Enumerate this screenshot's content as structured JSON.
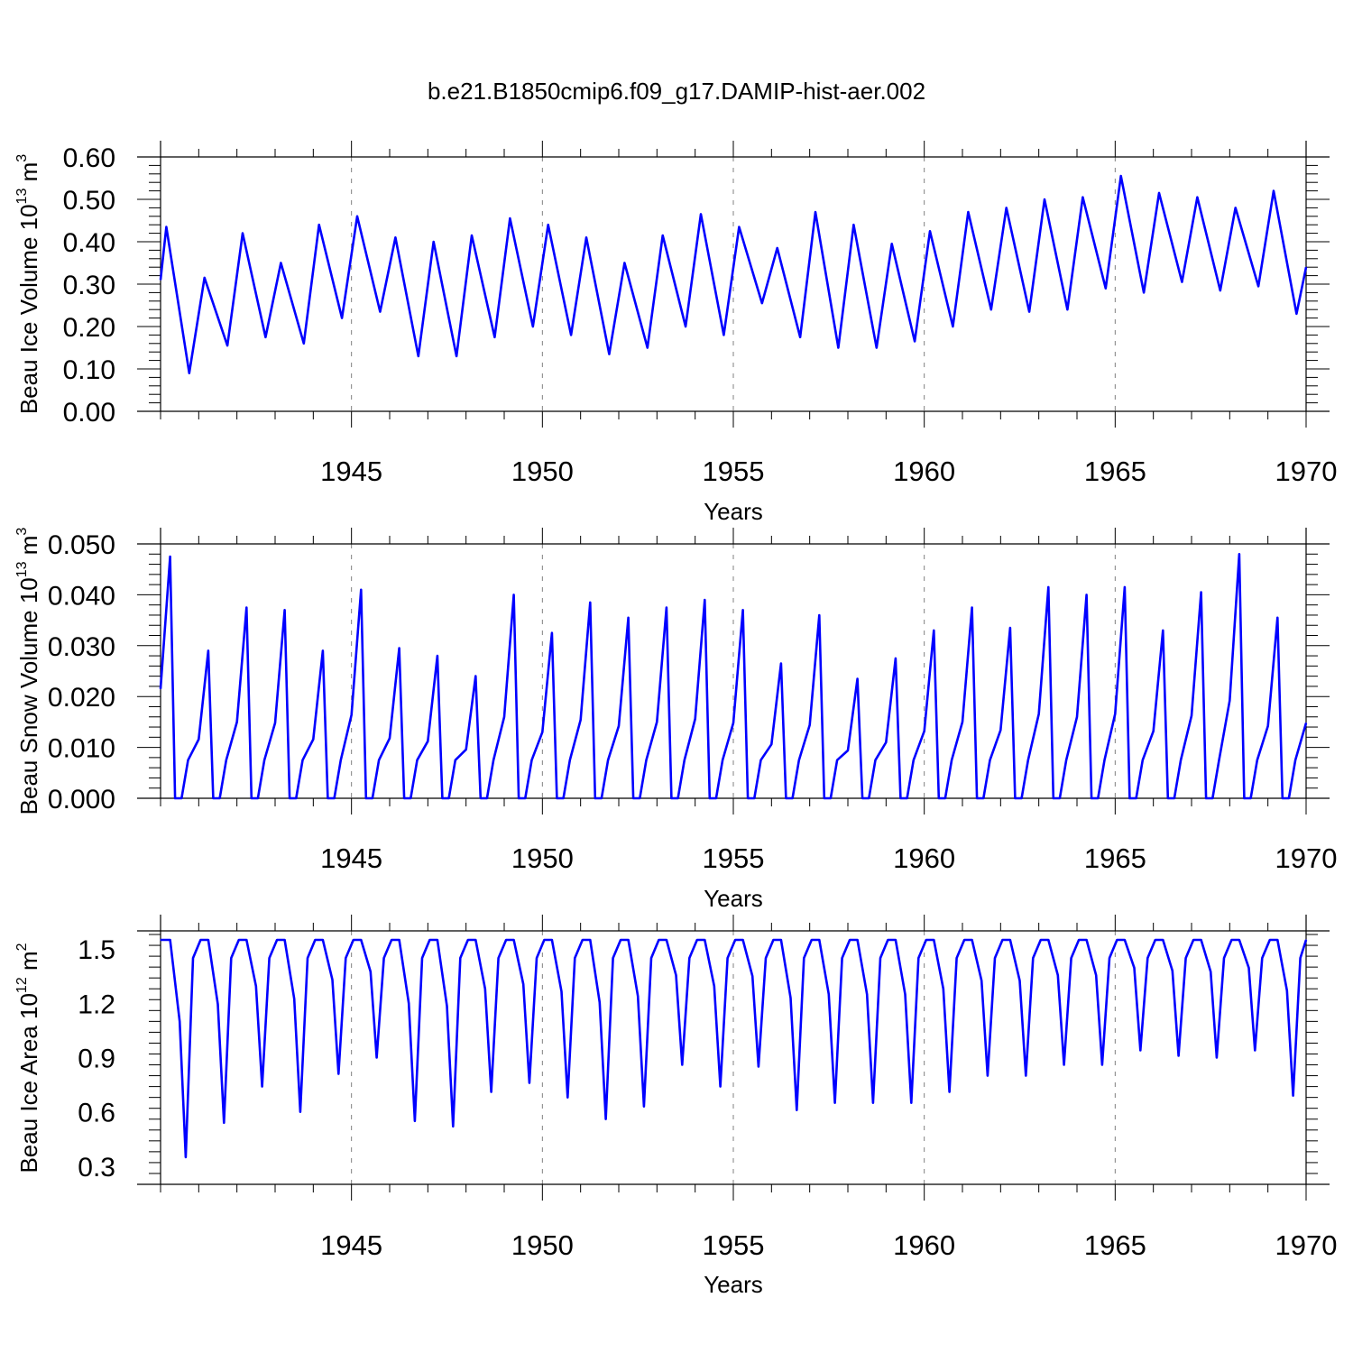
{
  "title": "b.e21.B1850cmip6.f09_g17.DAMIP-hist-aer.002",
  "colors": {
    "series": "#0000ff",
    "axis": "#000000",
    "grid": "#808080"
  },
  "chart_data": [
    {
      "type": "line",
      "name": "beau-ice-volume",
      "ylabel": {
        "prefix": "Beau Ice Volume 10",
        "exp1": "13",
        "mid": " m",
        "exp2": "3"
      },
      "xlabel": "Years",
      "xlim": [
        1940.0,
        1970.0
      ],
      "ylim": [
        0.0,
        0.6
      ],
      "yticks": [
        "0.00",
        "0.10",
        "0.20",
        "0.30",
        "0.40",
        "0.50",
        "0.60"
      ],
      "ytick_values": [
        0.0,
        0.1,
        0.2,
        0.3,
        0.4,
        0.5,
        0.6
      ],
      "xticks": [
        "1945",
        "1950",
        "1955",
        "1960",
        "1965",
        "1970"
      ],
      "xtick_values": [
        1945,
        1950,
        1955,
        1960,
        1965,
        1970
      ],
      "series": [
        {
          "name": "Beau Ice Volume",
          "mins": [
            0.09,
            0.155,
            0.175,
            0.16,
            0.22,
            0.235,
            0.13,
            0.13,
            0.175,
            0.2,
            0.18,
            0.135,
            0.15,
            0.2,
            0.18,
            0.255,
            0.175,
            0.15,
            0.15,
            0.165,
            0.2,
            0.24,
            0.235,
            0.24,
            0.29,
            0.28,
            0.305,
            0.285,
            0.295,
            0.23
          ],
          "maxs": [
            0.435,
            0.315,
            0.42,
            0.35,
            0.44,
            0.46,
            0.41,
            0.4,
            0.415,
            0.455,
            0.44,
            0.41,
            0.35,
            0.415,
            0.465,
            0.435,
            0.385,
            0.47,
            0.44,
            0.395,
            0.425,
            0.47,
            0.48,
            0.5,
            0.505,
            0.555,
            0.515,
            0.505,
            0.48,
            0.52
          ],
          "start": 0.31,
          "end": 0.34
        }
      ]
    },
    {
      "type": "line",
      "name": "beau-snow-volume",
      "ylabel": {
        "prefix": "Beau Snow Volume 10",
        "exp1": "13",
        "mid": " m",
        "exp2": "3"
      },
      "xlabel": "Years",
      "xlim": [
        1940.0,
        1970.0
      ],
      "ylim": [
        0.0,
        0.05
      ],
      "yticks": [
        "0.000",
        "0.010",
        "0.020",
        "0.030",
        "0.040",
        "0.050"
      ],
      "ytick_values": [
        0.0,
        0.01,
        0.02,
        0.03,
        0.04,
        0.05
      ],
      "xticks": [
        "1945",
        "1950",
        "1955",
        "1960",
        "1965",
        "1970"
      ],
      "xtick_values": [
        1945,
        1950,
        1955,
        1960,
        1965,
        1970
      ],
      "series": [
        {
          "name": "Beau Snow Volume",
          "maxs": [
            0.0475,
            0.029,
            0.0375,
            0.037,
            0.029,
            0.041,
            0.0295,
            0.028,
            0.024,
            0.04,
            0.0325,
            0.0385,
            0.0355,
            0.0375,
            0.039,
            0.037,
            0.0265,
            0.036,
            0.0235,
            0.0275,
            0.033,
            0.0375,
            0.0335,
            0.0415,
            0.04,
            0.0415,
            0.033,
            0.0405,
            0.048,
            0.0355
          ],
          "start": 0.0215,
          "end": 0.0148
        }
      ]
    },
    {
      "type": "line",
      "name": "beau-ice-area",
      "ylabel": {
        "prefix": "Beau Ice Area 10",
        "exp1": "12",
        "mid": " m",
        "exp2": "2"
      },
      "xlabel": "Years",
      "xlim": [
        1940.0,
        1970.0
      ],
      "ylim": [
        0.2,
        1.6
      ],
      "yticks": [
        "0.3",
        "0.6",
        "0.9",
        "1.2",
        "1.5"
      ],
      "ytick_values": [
        0.3,
        0.6,
        0.9,
        1.2,
        1.5
      ],
      "xticks": [
        "1945",
        "1950",
        "1955",
        "1960",
        "1965",
        "1970"
      ],
      "xtick_values": [
        1945,
        1950,
        1955,
        1960,
        1965,
        1970
      ],
      "series": [
        {
          "name": "Beau Ice Area",
          "max": 1.55,
          "mins": [
            0.35,
            0.54,
            0.74,
            0.6,
            0.81,
            0.9,
            0.55,
            0.52,
            0.71,
            0.76,
            0.68,
            0.56,
            0.63,
            0.86,
            0.74,
            0.85,
            0.61,
            0.65,
            0.65,
            0.65,
            0.71,
            0.8,
            0.8,
            0.86,
            0.86,
            0.94,
            0.91,
            0.9,
            0.94,
            0.69
          ],
          "start": 1.55,
          "end": 1.55
        }
      ]
    }
  ]
}
